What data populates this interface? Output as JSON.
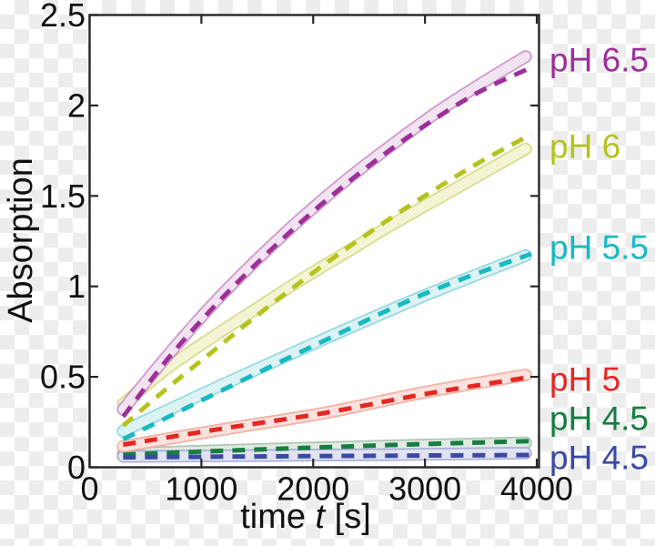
{
  "axes": {
    "y": {
      "label": "Absorption",
      "tick_labels": [
        "0",
        "0.5",
        "1",
        "1.5",
        "2",
        "2.5"
      ],
      "tick_values": [
        0,
        0.5,
        1,
        1.5,
        2,
        2.5
      ],
      "range": [
        0,
        2.5
      ]
    },
    "x": {
      "label_prefix": "time ",
      "label_variable": "t",
      "label_suffix": " [s]",
      "tick_labels": [
        "0",
        "1000",
        "2000",
        "3000",
        "4000"
      ],
      "tick_values": [
        0,
        1000,
        2000,
        3000,
        4000
      ],
      "range": [
        0,
        4020
      ]
    }
  },
  "colors": {
    "frame": "#262626",
    "plot_background": "#ffffff",
    "checker_light": "#ffffff",
    "checker_dark": "#ededed",
    "text": "#111111"
  },
  "chart_data": {
    "type": "line",
    "title": "",
    "xlabel": "time t [s]",
    "ylabel": "Absorption",
    "xlim": [
      0,
      4020
    ],
    "ylim": [
      0,
      2.5
    ],
    "grid": false,
    "legend_position": "right-outside",
    "description": "Absorption vs. time kinetics at different pH values; thick translucent bands are measured data, dashed lines are fits",
    "series": [
      {
        "name": "pH 6.5",
        "ph": 6.5,
        "color": "#9e2f98",
        "band_edge": "#c98dc5",
        "band_fill": "#f6ecf6",
        "band_points": [
          [
            300,
            0.32
          ],
          [
            700,
            0.62
          ],
          [
            1100,
            0.9
          ],
          [
            1500,
            1.15
          ],
          [
            1900,
            1.38
          ],
          [
            2300,
            1.59
          ],
          [
            2700,
            1.78
          ],
          [
            3100,
            1.96
          ],
          [
            3500,
            2.12
          ],
          [
            3900,
            2.27
          ]
        ],
        "fit_points": [
          [
            300,
            0.28
          ],
          [
            700,
            0.6
          ],
          [
            1100,
            0.88
          ],
          [
            1500,
            1.13
          ],
          [
            1900,
            1.36
          ],
          [
            2300,
            1.57
          ],
          [
            2700,
            1.76
          ],
          [
            3100,
            1.93
          ],
          [
            3500,
            2.08
          ],
          [
            3950,
            2.21
          ]
        ]
      },
      {
        "name": "pH 6",
        "ph": 6,
        "color": "#b5c31f",
        "band_edge": "#d5d87f",
        "band_fill": "#f7f7dd",
        "band_points": [
          [
            300,
            0.35
          ],
          [
            700,
            0.55
          ],
          [
            1100,
            0.72
          ],
          [
            1500,
            0.88
          ],
          [
            1900,
            1.04
          ],
          [
            2300,
            1.19
          ],
          [
            2700,
            1.34
          ],
          [
            3100,
            1.48
          ],
          [
            3500,
            1.62
          ],
          [
            3900,
            1.76
          ]
        ],
        "fit_points": [
          [
            300,
            0.23
          ],
          [
            700,
            0.44
          ],
          [
            1100,
            0.64
          ],
          [
            1500,
            0.84
          ],
          [
            1900,
            1.03
          ],
          [
            2300,
            1.21
          ],
          [
            2700,
            1.38
          ],
          [
            3100,
            1.54
          ],
          [
            3500,
            1.69
          ],
          [
            3950,
            1.84
          ]
        ]
      },
      {
        "name": "pH 5.5",
        "ph": 5.5,
        "color": "#18b9c2",
        "band_edge": "#88d6da",
        "band_fill": "#e6f5f6",
        "band_points": [
          [
            300,
            0.2
          ],
          [
            1200,
            0.46
          ],
          [
            2100,
            0.71
          ],
          [
            3000,
            0.95
          ],
          [
            3900,
            1.17
          ]
        ],
        "fit_points": [
          [
            300,
            0.155
          ],
          [
            1200,
            0.43
          ],
          [
            2100,
            0.7
          ],
          [
            3000,
            0.96
          ],
          [
            3950,
            1.18
          ]
        ]
      },
      {
        "name": "pH 5",
        "ph": 5,
        "color": "#e42723",
        "band_edge": "#f2a79a",
        "band_fill": "#fdebe7",
        "band_points": [
          [
            300,
            0.115
          ],
          [
            1200,
            0.21
          ],
          [
            2100,
            0.3
          ],
          [
            3000,
            0.415
          ],
          [
            3900,
            0.51
          ]
        ],
        "fit_points": [
          [
            300,
            0.125
          ],
          [
            1200,
            0.215
          ],
          [
            2100,
            0.3
          ],
          [
            3000,
            0.405
          ],
          [
            3950,
            0.5
          ]
        ]
      },
      {
        "name": "pH 4.5",
        "ph": 4.5,
        "color": "#177d41",
        "band_edge": "#a4c0a9",
        "band_fill": "#eaf0eb",
        "band_points": [
          [
            300,
            0.075
          ],
          [
            1500,
            0.098
          ],
          [
            2700,
            0.118
          ],
          [
            3900,
            0.135
          ]
        ],
        "fit_points": [
          [
            300,
            0.07
          ],
          [
            1500,
            0.098
          ],
          [
            2700,
            0.123
          ],
          [
            3950,
            0.145
          ]
        ]
      },
      {
        "name": "pH 4.5",
        "ph": 4.5,
        "color": "#3a49a4",
        "band_edge": "#a4aad4",
        "band_fill": "#e9eaf5",
        "band_points": [
          [
            300,
            0.06
          ],
          [
            1500,
            0.065
          ],
          [
            2700,
            0.07
          ],
          [
            3900,
            0.078
          ]
        ],
        "fit_points": [
          [
            300,
            0.055
          ],
          [
            1500,
            0.06
          ],
          [
            2700,
            0.064
          ],
          [
            3950,
            0.068
          ]
        ]
      }
    ]
  }
}
